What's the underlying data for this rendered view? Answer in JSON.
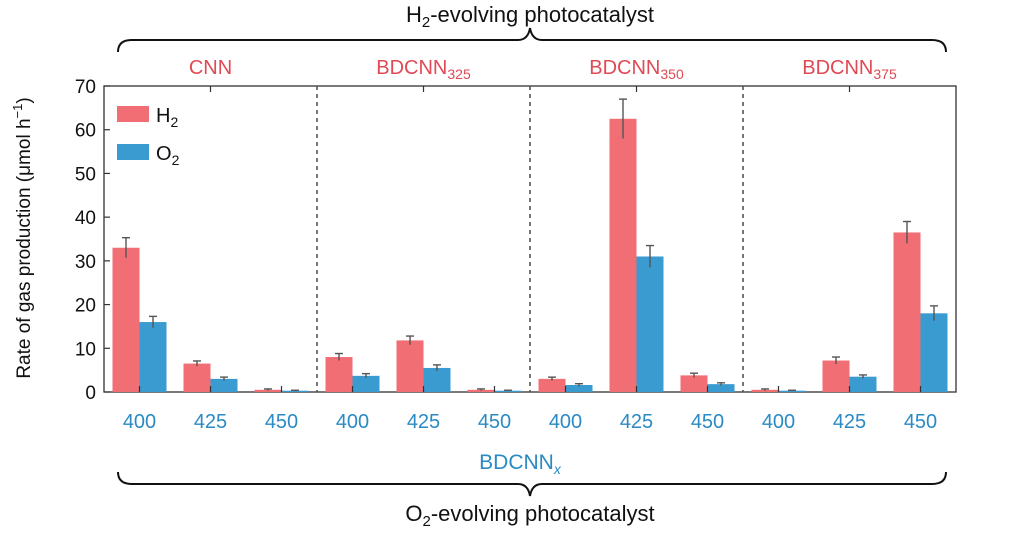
{
  "chart_data": {
    "type": "bar",
    "top_brace_label": {
      "main": "H",
      "sub": "2",
      "rest": "-evolving photocatalyst"
    },
    "bottom_brace_label": {
      "main": "O",
      "sub": "2",
      "rest": "-evolving photocatalyst"
    },
    "x_group_label": {
      "main": "BDCNN",
      "sub": "x"
    },
    "ylabel": {
      "main": "Rate of gas production (μmol h",
      "sup": "−1",
      "end": ")"
    },
    "ylim": [
      0,
      70
    ],
    "yticks": [
      "0",
      "10",
      "20",
      "30",
      "40",
      "50",
      "60",
      "70"
    ],
    "legend": [
      {
        "main": "H",
        "sub": "2"
      },
      {
        "main": "O",
        "sub": "2"
      }
    ],
    "colors": {
      "H2": "#f06e74",
      "O2": "#3a9bd0",
      "top_labels": "#e04a55",
      "x_labels": "#2a8ac4"
    },
    "groups": [
      {
        "name": {
          "main": "CNN",
          "sub": ""
        },
        "categories": [
          "400",
          "425",
          "450"
        ],
        "H2": [
          33,
          6.5,
          0.5
        ],
        "H2_err": [
          2.3,
          0.6,
          0.2
        ],
        "O2": [
          16,
          3,
          0.3
        ],
        "O2_err": [
          1.3,
          0.4,
          0.1
        ]
      },
      {
        "name": {
          "main": "BDCNN",
          "sub": "325"
        },
        "categories": [
          "400",
          "425",
          "450"
        ],
        "H2": [
          8,
          11.8,
          0.5
        ],
        "H2_err": [
          0.8,
          1.0,
          0.2
        ],
        "O2": [
          3.7,
          5.5,
          0.3
        ],
        "O2_err": [
          0.5,
          0.7,
          0.1
        ]
      },
      {
        "name": {
          "main": "BDCNN",
          "sub": "350"
        },
        "categories": [
          "400",
          "425",
          "450"
        ],
        "H2": [
          3,
          62.5,
          3.8
        ],
        "H2_err": [
          0.4,
          4.5,
          0.5
        ],
        "O2": [
          1.6,
          31,
          1.8
        ],
        "O2_err": [
          0.3,
          2.5,
          0.3
        ]
      },
      {
        "name": {
          "main": "BDCNN",
          "sub": "375"
        },
        "categories": [
          "400",
          "425",
          "450"
        ],
        "H2": [
          0.5,
          7.2,
          36.5
        ],
        "H2_err": [
          0.2,
          0.8,
          2.5
        ],
        "O2": [
          0.3,
          3.5,
          18
        ],
        "O2_err": [
          0.1,
          0.4,
          1.7
        ]
      }
    ]
  }
}
